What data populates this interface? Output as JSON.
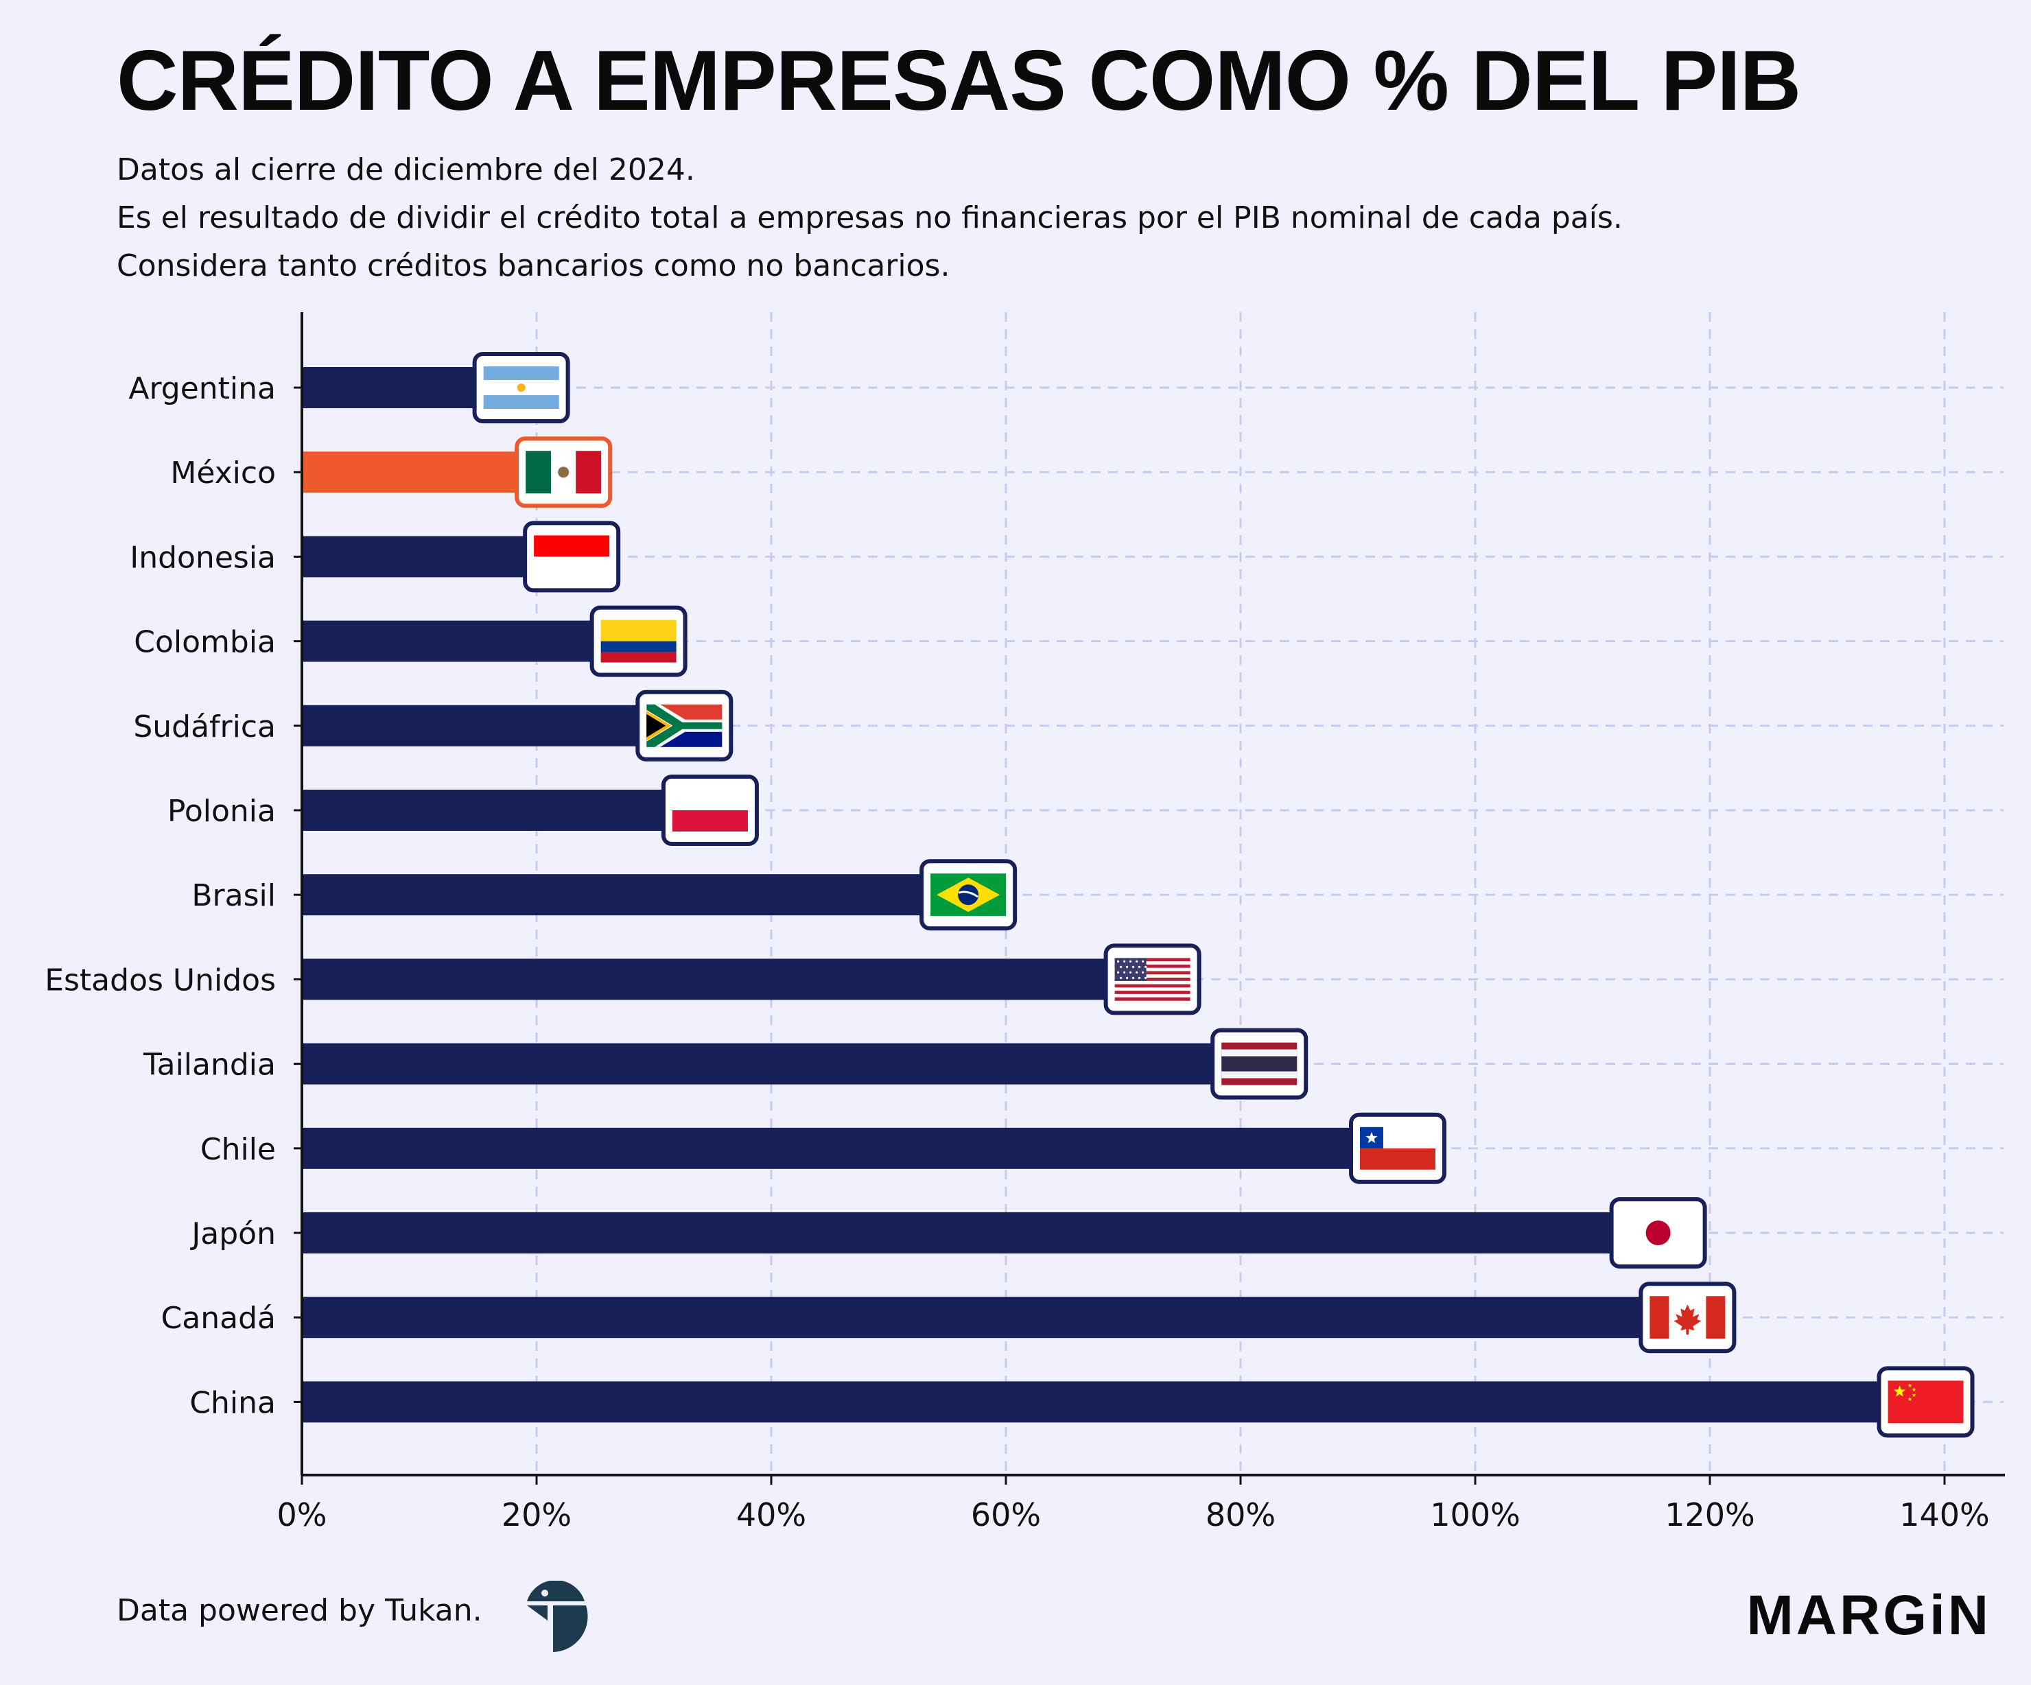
{
  "header": {
    "title": "CRÉDITO A EMPRESAS COMO % DEL PIB",
    "subtitle_lines": [
      "Datos al cierre de diciembre del 2024.",
      "Es el resultado de dividir el crédito total a empresas no financieras por el PIB nominal de cada país.",
      "Considera tanto créditos bancarios como no bancarios."
    ]
  },
  "colors": {
    "bar": "#18205a",
    "highlight": "#ee5a2c",
    "grid": "#c9c9f3",
    "background": "#f1f1fd"
  },
  "chart_data": {
    "type": "bar",
    "orientation": "horizontal",
    "categories": [
      "Argentina",
      "México",
      "Indonesia",
      "Colombia",
      "Sudáfrica",
      "Polonia",
      "Brasil",
      "Estados Unidos",
      "Tailandia",
      "Chile",
      "Japón",
      "Canadá",
      "China"
    ],
    "values": [
      15.3,
      18.9,
      19.6,
      25.3,
      29.2,
      31.4,
      53.4,
      69.1,
      78.2,
      90.0,
      112.2,
      114.7,
      135.0
    ],
    "flags": [
      "argentina-flag",
      "mexico-flag",
      "indonesia-flag",
      "colombia-flag",
      "south-africa-flag",
      "poland-flag",
      "brazil-flag",
      "usa-flag",
      "thailand-flag",
      "chile-flag",
      "japan-flag",
      "canada-flag",
      "china-flag"
    ],
    "highlight": "México",
    "xlim": [
      0,
      145
    ],
    "xticks": [
      0,
      20,
      40,
      60,
      80,
      100,
      120,
      140
    ],
    "xtick_labels": [
      "0%",
      "20%",
      "40%",
      "60%",
      "80%",
      "100%",
      "120%",
      "140%"
    ],
    "grid": true,
    "title": "CRÉDITO A EMPRESAS COMO % DEL PIB",
    "xlabel": "",
    "ylabel": ""
  },
  "footer": {
    "source": "Data powered by Tukan.",
    "brand": "MARGiN"
  }
}
